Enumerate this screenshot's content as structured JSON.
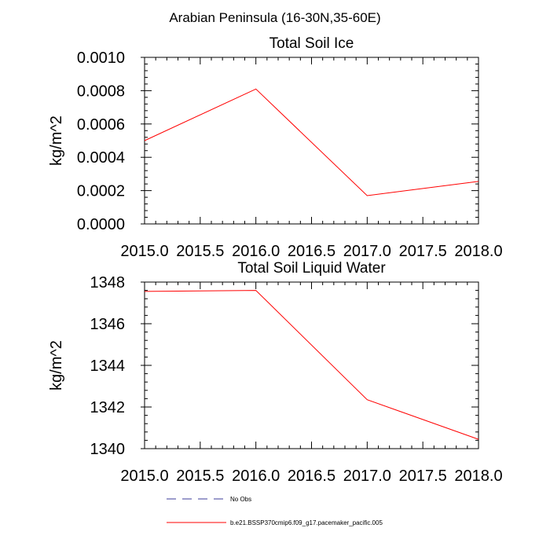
{
  "suptitle": "Arabian Peninsula (16-30N,35-60E)",
  "colors": {
    "series": "#ff0000",
    "obs": "#3b3b9a",
    "axis": "#000000"
  },
  "legend": {
    "entries": [
      {
        "label": "No Obs",
        "style": "dashed",
        "color": "#3b3b9a"
      },
      {
        "label": "b.e21.BSSP370cmip6.f09_g17.pacemaker_pacific.005",
        "style": "solid",
        "color": "#ff0000"
      }
    ]
  },
  "chart_data": [
    {
      "type": "line",
      "title": "Total Soil Ice",
      "xlabel": "",
      "ylabel": "kg/m^2",
      "xlim": [
        2015.0,
        2018.0
      ],
      "ylim": [
        0.0,
        0.001
      ],
      "xticks": [
        2015.0,
        2015.5,
        2016.0,
        2016.5,
        2017.0,
        2017.5,
        2018.0
      ],
      "xtick_labels": [
        "2015.0",
        "2015.5",
        "2016.0",
        "2016.5",
        "2017.0",
        "2017.5",
        "2018.0"
      ],
      "yticks": [
        0.0,
        0.0002,
        0.0004,
        0.0006,
        0.0008,
        0.001
      ],
      "ytick_labels": [
        "0.0000",
        "0.0002",
        "0.0004",
        "0.0006",
        "0.0008",
        "0.0010"
      ],
      "series": [
        {
          "name": "b.e21.BSSP370cmip6.f09_g17.pacemaker_pacific.005",
          "x": [
            2015.0,
            2016.0,
            2017.0,
            2018.0
          ],
          "values": [
            0.0005,
            0.00081,
            0.00017,
            0.000255
          ]
        }
      ]
    },
    {
      "type": "line",
      "title": "Total Soil Liquid Water",
      "xlabel": "",
      "ylabel": "kg/m^2",
      "xlim": [
        2015.0,
        2018.0
      ],
      "ylim": [
        1340,
        1348
      ],
      "xticks": [
        2015.0,
        2015.5,
        2016.0,
        2016.5,
        2017.0,
        2017.5,
        2018.0
      ],
      "xtick_labels": [
        "2015.0",
        "2015.5",
        "2016.0",
        "2016.5",
        "2017.0",
        "2017.5",
        "2018.0"
      ],
      "yticks": [
        1340,
        1342,
        1344,
        1346,
        1348
      ],
      "ytick_labels": [
        "1340",
        "1342",
        "1344",
        "1346",
        "1348"
      ],
      "series": [
        {
          "name": "b.e21.BSSP370cmip6.f09_g17.pacemaker_pacific.005",
          "x": [
            2015.0,
            2016.0,
            2017.0,
            2018.0
          ],
          "values": [
            1347.55,
            1347.6,
            1342.35,
            1340.45
          ]
        }
      ]
    }
  ]
}
